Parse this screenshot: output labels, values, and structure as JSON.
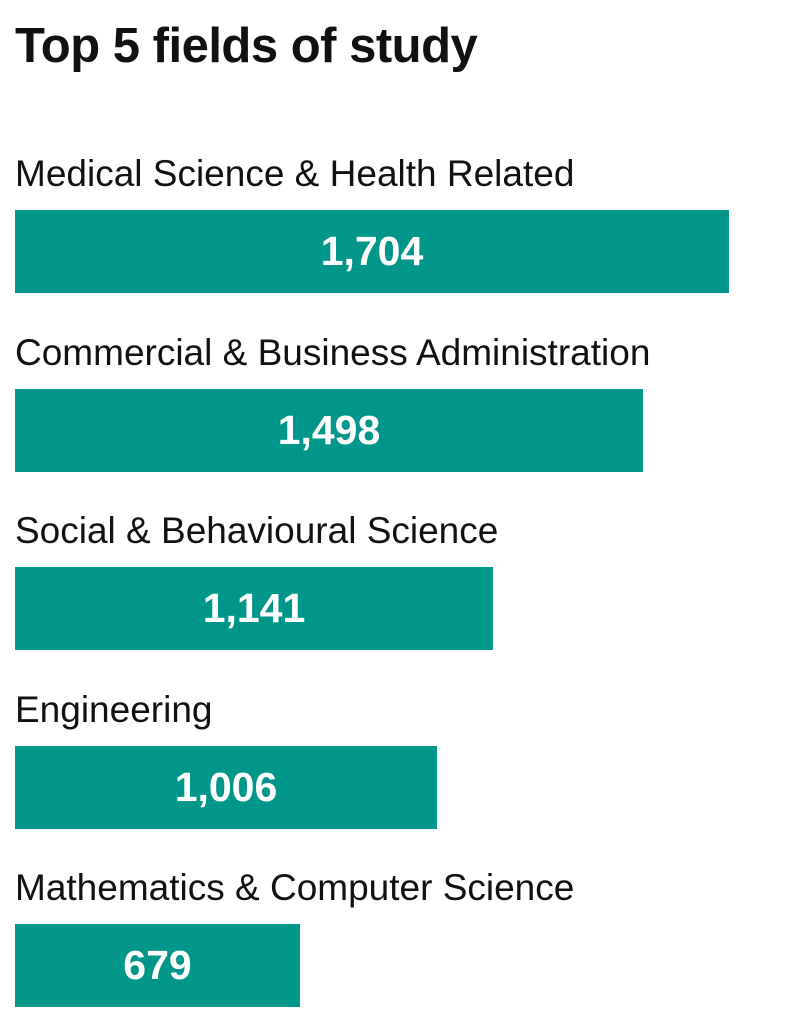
{
  "chart_data": {
    "type": "bar",
    "orientation": "horizontal",
    "title": "Top 5 fields of study",
    "categories": [
      "Medical Science & Health Related",
      "Commercial & Business Administration",
      "Social & Behavioural Science",
      "Engineering",
      "Mathematics & Computer Science"
    ],
    "values": [
      1704,
      1498,
      1141,
      1006,
      679
    ],
    "value_labels": [
      "1,704",
      "1,498",
      "1,141",
      "1,006",
      "679"
    ],
    "xlim": [
      0,
      1704
    ],
    "grid": false,
    "legend": "none",
    "bar_color": "#00978a",
    "label_color": "#ffffff"
  }
}
